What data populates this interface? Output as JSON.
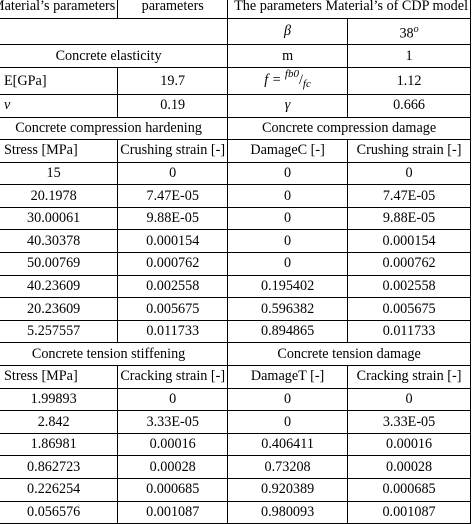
{
  "params": {
    "h1": "Material’s parameters",
    "h2": "parameters",
    "h3": "The parameters Material’s of CDP model",
    "beta_sym": "β",
    "beta_val": "38",
    "beta_sup": "o",
    "elasticity_label": "Concrete elasticity",
    "m_label": "m",
    "m_val": "1",
    "e_label": "E[GPa]",
    "e_val": "19.7",
    "f_lhs": "f = ",
    "f_num": "fb0",
    "f_slash": "/",
    "f_den": "fc",
    "f_val": "1.12",
    "nu_label": "ν",
    "nu_val": "0.19",
    "gamma_label": "γ",
    "gamma_val": "0.666"
  },
  "compression": {
    "hardening_title": "Concrete compression hardening",
    "damage_title": "Concrete compression damage",
    "headers": [
      "Stress [MPa]",
      "Crushing strain [-]",
      "DamageC [-]",
      "Crushing strain [-]"
    ],
    "rows": [
      [
        "15",
        "0",
        "0",
        "0"
      ],
      [
        "20.1978",
        "7.47E-05",
        "0",
        "7.47E-05"
      ],
      [
        "30.00061",
        "9.88E-05",
        "0",
        "9.88E-05"
      ],
      [
        "40.30378",
        "0.000154",
        "0",
        "0.000154"
      ],
      [
        "50.00769",
        "0.000762",
        "0",
        "0.000762"
      ],
      [
        "40.23609",
        "0.002558",
        "0.195402",
        "0.002558"
      ],
      [
        "20.23609",
        "0.005675",
        "0.596382",
        "0.005675"
      ],
      [
        "5.257557",
        "0.011733",
        "0.894865",
        "0.011733"
      ]
    ]
  },
  "tension": {
    "stiffening_title": "Concrete tension stiffening",
    "damage_title": "Concrete tension damage",
    "headers": [
      "Stress [MPa]",
      "Cracking strain [-]",
      "DamageT [-]",
      "Cracking strain [-]"
    ],
    "rows": [
      [
        "1.99893",
        "0",
        "0",
        "0"
      ],
      [
        "2.842",
        "3.33E-05",
        "0",
        "3.33E-05"
      ],
      [
        "1.86981",
        "0.00016",
        "0.406411",
        "0.00016"
      ],
      [
        "0.862723",
        "0.00028",
        "0.73208",
        "0.00028"
      ],
      [
        "0.226254",
        "0.000685",
        "0.920389",
        "0.000685"
      ],
      [
        "0.056576",
        "0.001087",
        "0.980093",
        "0.001087"
      ]
    ]
  }
}
